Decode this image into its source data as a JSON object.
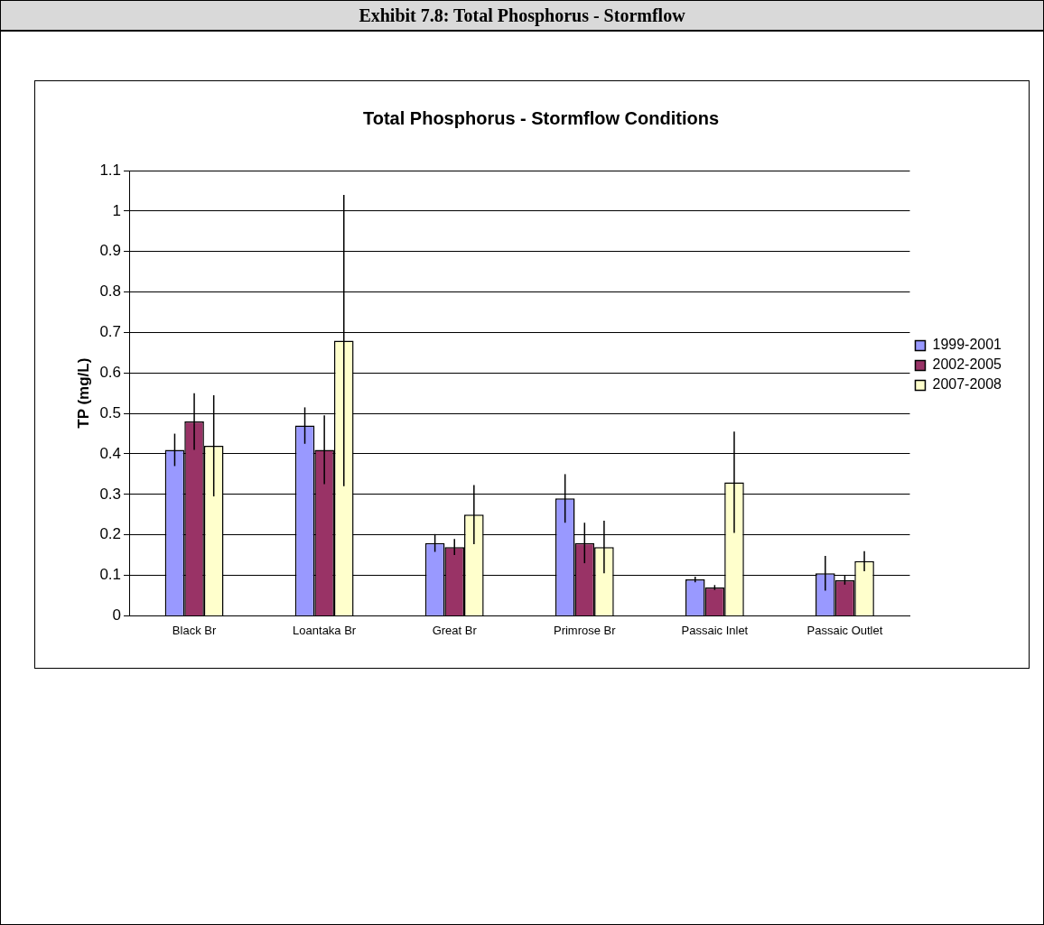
{
  "chart_data": {
    "type": "bar",
    "title": "Total Phosphorus - Stormflow Conditions",
    "ylabel": "TP (mg/L)",
    "categories": [
      "Black Br",
      "Loantaka Br",
      "Great Br",
      "Primrose Br",
      "Passaic Inlet",
      "Passaic Outlet"
    ],
    "series": [
      {
        "name": "1999-2001",
        "color": "#9999ff",
        "values": [
          0.41,
          0.47,
          0.18,
          0.29,
          0.09,
          0.105
        ],
        "errors": [
          0.04,
          0.045,
          0.022,
          0.06,
          0.007,
          0.043
        ]
      },
      {
        "name": "2002-2005",
        "color": "#993366",
        "values": [
          0.48,
          0.41,
          0.17,
          0.18,
          0.07,
          0.088
        ],
        "errors": [
          0.07,
          0.085,
          0.02,
          0.05,
          0.006,
          0.011
        ]
      },
      {
        "name": "2007-2008",
        "color": "#ffffcc",
        "values": [
          0.42,
          0.68,
          0.25,
          0.17,
          0.33,
          0.135
        ],
        "errors": [
          0.125,
          0.36,
          0.073,
          0.065,
          0.125,
          0.025
        ]
      }
    ],
    "ylim": [
      0,
      1.1
    ],
    "yticks": [
      0,
      0.1,
      0.2,
      0.3,
      0.4,
      0.5,
      0.6,
      0.7,
      0.8,
      0.9,
      1,
      1.1
    ],
    "grid": "y",
    "legend": "right",
    "annotations": [
      "Exhibit 7.8: Total Phosphorus - Stormflow"
    ]
  }
}
